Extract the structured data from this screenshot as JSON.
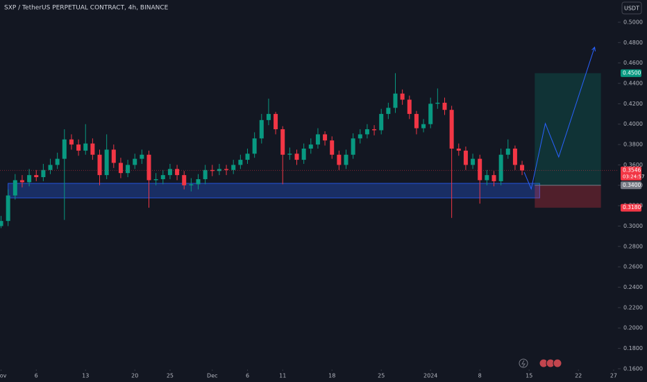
{
  "chart_data": {
    "type": "candlestick",
    "title": "SXP / TetherUS PERPETUAL CONTRACT, 4h, BINANCE",
    "currency": "USDT",
    "x": [
      0,
      1,
      2,
      3,
      4,
      5,
      6,
      7,
      8,
      9,
      10,
      11,
      12,
      13,
      14,
      15,
      16,
      17,
      18,
      19,
      20,
      21,
      22,
      23,
      24,
      25,
      26,
      27,
      28,
      29,
      30,
      31,
      32,
      33,
      34,
      35,
      36,
      37,
      38,
      39,
      40,
      41,
      42,
      43,
      44,
      45,
      46,
      47,
      48,
      49,
      50,
      51,
      52,
      53,
      54,
      55,
      56,
      57,
      58,
      59,
      60,
      61,
      62,
      63,
      64,
      65,
      66,
      67,
      68,
      69,
      70,
      71,
      72,
      73,
      74
    ],
    "open": [
      0.3,
      0.305,
      0.33,
      0.345,
      0.343,
      0.35,
      0.348,
      0.355,
      0.36,
      0.366,
      0.385,
      0.38,
      0.374,
      0.381,
      0.37,
      0.35,
      0.375,
      0.362,
      0.352,
      0.36,
      0.366,
      0.37,
      0.345,
      0.346,
      0.35,
      0.356,
      0.35,
      0.34,
      0.341,
      0.346,
      0.355,
      0.354,
      0.356,
      0.355,
      0.36,
      0.365,
      0.371,
      0.386,
      0.404,
      0.41,
      0.395,
      0.37,
      0.371,
      0.365,
      0.376,
      0.38,
      0.39,
      0.384,
      0.37,
      0.36,
      0.37,
      0.386,
      0.39,
      0.395,
      0.394,
      0.41,
      0.416,
      0.43,
      0.424,
      0.41,
      0.396,
      0.4,
      0.42,
      0.421,
      0.414,
      0.376,
      0.374,
      0.36,
      0.366,
      0.345,
      0.35,
      0.344,
      0.37,
      0.376,
      0.36
    ],
    "high": [
      0.31,
      0.336,
      0.351,
      0.35,
      0.356,
      0.355,
      0.361,
      0.366,
      0.372,
      0.395,
      0.39,
      0.385,
      0.4,
      0.386,
      0.375,
      0.39,
      0.38,
      0.367,
      0.365,
      0.371,
      0.375,
      0.374,
      0.352,
      0.355,
      0.361,
      0.36,
      0.354,
      0.347,
      0.351,
      0.36,
      0.36,
      0.361,
      0.36,
      0.365,
      0.37,
      0.376,
      0.392,
      0.41,
      0.425,
      0.412,
      0.398,
      0.377,
      0.375,
      0.381,
      0.386,
      0.396,
      0.393,
      0.388,
      0.374,
      0.375,
      0.391,
      0.395,
      0.4,
      0.399,
      0.415,
      0.421,
      0.45,
      0.434,
      0.428,
      0.413,
      0.405,
      0.426,
      0.435,
      0.426,
      0.418,
      0.381,
      0.378,
      0.371,
      0.37,
      0.355,
      0.354,
      0.376,
      0.385,
      0.379,
      0.364
    ],
    "low": [
      0.298,
      0.3,
      0.326,
      0.338,
      0.339,
      0.344,
      0.344,
      0.351,
      0.356,
      0.306,
      0.375,
      0.369,
      0.37,
      0.365,
      0.34,
      0.346,
      0.357,
      0.347,
      0.348,
      0.356,
      0.361,
      0.318,
      0.34,
      0.341,
      0.346,
      0.345,
      0.336,
      0.334,
      0.336,
      0.341,
      0.349,
      0.35,
      0.35,
      0.351,
      0.356,
      0.361,
      0.367,
      0.381,
      0.399,
      0.39,
      0.341,
      0.365,
      0.36,
      0.361,
      0.371,
      0.376,
      0.379,
      0.366,
      0.355,
      0.356,
      0.366,
      0.381,
      0.386,
      0.389,
      0.39,
      0.405,
      0.411,
      0.419,
      0.405,
      0.39,
      0.392,
      0.396,
      0.415,
      0.409,
      0.308,
      0.369,
      0.355,
      0.356,
      0.322,
      0.34,
      0.339,
      0.34,
      0.366,
      0.355,
      0.35
    ],
    "close": [
      0.305,
      0.33,
      0.345,
      0.343,
      0.35,
      0.348,
      0.355,
      0.36,
      0.366,
      0.385,
      0.38,
      0.374,
      0.381,
      0.37,
      0.35,
      0.375,
      0.362,
      0.352,
      0.36,
      0.366,
      0.37,
      0.345,
      0.346,
      0.35,
      0.356,
      0.35,
      0.34,
      0.341,
      0.346,
      0.355,
      0.354,
      0.356,
      0.355,
      0.36,
      0.365,
      0.371,
      0.386,
      0.404,
      0.41,
      0.395,
      0.37,
      0.371,
      0.365,
      0.376,
      0.38,
      0.39,
      0.384,
      0.37,
      0.36,
      0.37,
      0.386,
      0.39,
      0.395,
      0.394,
      0.41,
      0.416,
      0.43,
      0.424,
      0.41,
      0.396,
      0.4,
      0.42,
      0.421,
      0.414,
      0.376,
      0.374,
      0.36,
      0.366,
      0.345,
      0.35,
      0.344,
      0.37,
      0.376,
      0.36,
      0.3546
    ],
    "up_color": "#089981",
    "down_color": "#f23645",
    "xlim": [
      -0.15,
      87.6
    ],
    "xticks": [
      {
        "value": 0,
        "label": "Nov"
      },
      {
        "value": 5,
        "label": "6"
      },
      {
        "value": 12,
        "label": "13"
      },
      {
        "value": 19,
        "label": "20"
      },
      {
        "value": 24,
        "label": "25"
      },
      {
        "value": 30,
        "label": "Dec"
      },
      {
        "value": 35,
        "label": "6"
      },
      {
        "value": 40,
        "label": "11"
      },
      {
        "value": 47,
        "label": "18"
      },
      {
        "value": 54,
        "label": "25"
      },
      {
        "value": 61,
        "label": "2024"
      },
      {
        "value": 68,
        "label": "8"
      },
      {
        "value": 75,
        "label": "15"
      },
      {
        "value": 82,
        "label": "22"
      },
      {
        "value": 87,
        "label": "27"
      }
    ],
    "ylim": [
      0.147,
      0.5218
    ],
    "yticks": [
      {
        "value": 0.5,
        "label": "0.5000"
      },
      {
        "value": 0.48,
        "label": "0.4800"
      },
      {
        "value": 0.46,
        "label": "0.4600"
      },
      {
        "value": 0.44,
        "label": "0.4400"
      },
      {
        "value": 0.42,
        "label": "0.4200"
      },
      {
        "value": 0.4,
        "label": "0.4000"
      },
      {
        "value": 0.38,
        "label": "0.3800"
      },
      {
        "value": 0.36,
        "label": "0.3600"
      },
      {
        "value": 0.34,
        "label": "0.3400"
      },
      {
        "value": 0.32,
        "label": "0.3200"
      },
      {
        "value": 0.3,
        "label": "0.3000"
      },
      {
        "value": 0.28,
        "label": "0.2800"
      },
      {
        "value": 0.26,
        "label": "0.2600"
      },
      {
        "value": 0.24,
        "label": "0.2400"
      },
      {
        "value": 0.22,
        "label": "0.2200"
      },
      {
        "value": 0.2,
        "label": "0.2000"
      },
      {
        "value": 0.18,
        "label": "0.1800"
      },
      {
        "value": 0.16,
        "label": "0.1600"
      }
    ],
    "grid": false,
    "support_zone": {
      "x": [
        1,
        76.5
      ],
      "y": [
        0.3276,
        0.3419
      ],
      "color": "#2962ff"
    },
    "position": {
      "x": [
        75.8,
        85.2
      ],
      "entry": {
        "value": 0.34,
        "label": "0.3400"
      },
      "target": {
        "value": 0.45,
        "label": "0.4500"
      },
      "stop": {
        "value": 0.318,
        "label": "0.3180"
      }
    },
    "last_price": {
      "value": 0.3546,
      "label": "0.3546"
    },
    "countdown": "03:24:57",
    "projection": {
      "x": [
        74.3,
        75.3,
        77.3,
        79.2,
        84.3
      ],
      "y": [
        0.3528,
        0.3365,
        0.4006,
        0.3678,
        0.4755
      ],
      "color": "#2962ff"
    }
  }
}
